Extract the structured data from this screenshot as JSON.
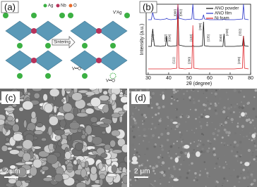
{
  "panels": {
    "a": {
      "label": "(a)",
      "legend": [
        "Ag",
        "Nb",
        "O"
      ],
      "arrow": "Sintering",
      "defects": [
        "V′Ag",
        "V••O",
        "V••O"
      ]
    },
    "c": {
      "label": "(c)",
      "scale": "2 μm"
    },
    "d": {
      "label": "(d)",
      "scale": "2 μm"
    }
  },
  "chart_data": {
    "type": "line",
    "panel_label": "(b)",
    "xlabel": "2θ (degree)",
    "ylabel": "Intensity (a.u.)",
    "x": [
      30,
      31.5,
      32.2,
      33,
      36,
      38.5,
      39,
      39.5,
      41,
      44,
      44.5,
      45,
      48,
      51.3,
      51.8,
      52.3,
      55,
      56.5,
      57,
      57.5,
      60,
      66.5,
      67,
      67.5,
      72,
      76,
      76.5,
      77,
      79
    ],
    "series": [
      {
        "name": "ANO powder",
        "color": "#111111",
        "values": [
          40,
          40,
          65,
          41,
          40,
          41,
          55,
          41,
          40,
          41,
          100,
          42,
          40,
          40,
          41,
          40,
          40,
          41,
          75,
          41,
          40,
          40,
          58,
          40,
          40,
          41,
          55,
          41,
          40
        ]
      },
      {
        "name": "ANO film",
        "color": "#2a35c8",
        "values": [
          78,
          78,
          88,
          79,
          78,
          79,
          80,
          79,
          78,
          79,
          100,
          80,
          78,
          79,
          100,
          79,
          78,
          79,
          85,
          79,
          78,
          78,
          79,
          78,
          78,
          79,
          100,
          79,
          78
        ]
      },
      {
        "name": "Ni foam",
        "color": "#e0242a",
        "values": [
          8,
          8,
          8,
          8,
          8,
          8,
          8,
          8,
          8,
          9,
          100,
          9,
          8,
          9,
          70,
          9,
          8,
          8,
          8,
          8,
          8,
          8,
          8,
          8,
          8,
          9,
          55,
          9,
          8
        ]
      }
    ],
    "annotations": [
      {
        "text": "(110)",
        "x": 32.2,
        "y": 52
      },
      {
        "text": "(202)",
        "x": 38.5,
        "y": 52
      },
      {
        "text": "(024)",
        "x": 40.5,
        "y": 52
      },
      {
        "text": "(006)",
        "x": 43.2,
        "y": 88
      },
      {
        "text": "(002)",
        "x": 46,
        "y": 88
      },
      {
        "text": "(133)",
        "x": 51,
        "y": 52
      },
      {
        "text": "(208)",
        "x": 55.5,
        "y": 68
      },
      {
        "text": "(135)",
        "x": 59.5,
        "y": 52
      },
      {
        "text": "(040)",
        "x": 65.5,
        "y": 52
      },
      {
        "text": "(228)",
        "x": 68.5,
        "y": 60
      },
      {
        "text": "(332)",
        "x": 75,
        "y": 60
      },
      {
        "text": "(111)",
        "x": 42.5,
        "y": 20
      },
      {
        "text": "(200)",
        "x": 50.2,
        "y": 20
      },
      {
        "text": "(220)",
        "x": 74.5,
        "y": 20
      }
    ],
    "xlim": [
      29,
      80
    ],
    "ylim": [
      0,
      100
    ],
    "xticks": [
      30,
      40,
      50,
      60,
      70,
      80
    ],
    "legend": "upper-right"
  }
}
